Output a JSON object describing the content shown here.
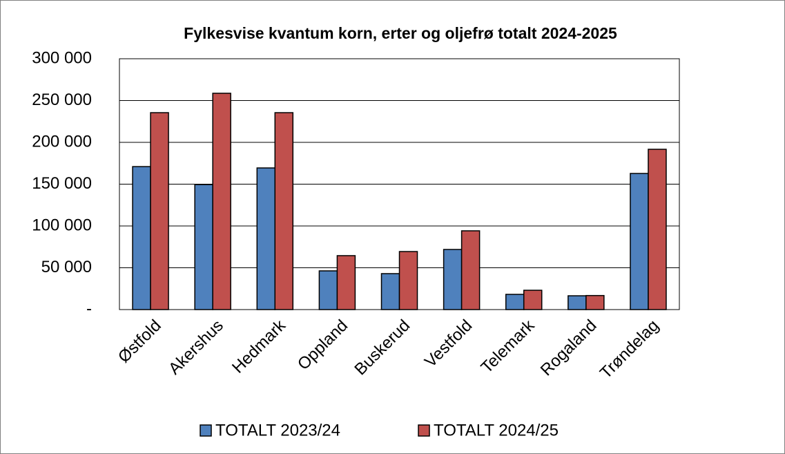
{
  "chart_data": {
    "type": "bar",
    "title": "Fylkesvise kvantum korn, erter og oljefrø totalt 2024-2025",
    "categories": [
      "Østfold",
      "Akershus",
      "Hedmark",
      "Oppland",
      "Buskerud",
      "Vestfold",
      "Telemark",
      "Rogaland",
      "Trøndelag"
    ],
    "series": [
      {
        "name": "TOTALT 2023/24",
        "color": "#4f81bd",
        "values": [
          171000,
          149500,
          169400,
          46300,
          43000,
          71900,
          18200,
          16500,
          162800
        ]
      },
      {
        "name": "TOTALT 2024/25",
        "color": "#c0504d",
        "values": [
          235500,
          258700,
          235500,
          64500,
          69400,
          94200,
          23100,
          16800,
          191700
        ]
      }
    ],
    "ylim": [
      0,
      300000
    ],
    "yticks": [
      {
        "value": 0,
        "label": "-"
      },
      {
        "value": 50000,
        "label": "50 000"
      },
      {
        "value": 100000,
        "label": "100 000"
      },
      {
        "value": 150000,
        "label": "150 000"
      },
      {
        "value": 200000,
        "label": "200 000"
      },
      {
        "value": 250000,
        "label": "250 000"
      },
      {
        "value": 300000,
        "label": "300 000"
      }
    ],
    "grid": true,
    "legend": "bottom"
  }
}
